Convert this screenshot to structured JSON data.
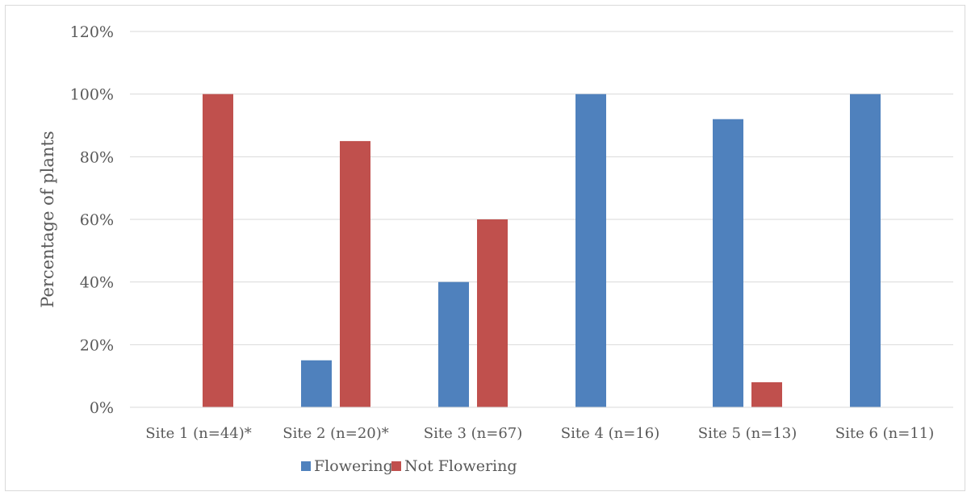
{
  "chart_data": {
    "type": "bar",
    "title": "",
    "xlabel": "",
    "ylabel": "Percentage of plants",
    "ylim": [
      0,
      1.2
    ],
    "yticks": [
      {
        "value": 0.0,
        "label": "0%"
      },
      {
        "value": 0.2,
        "label": "20%"
      },
      {
        "value": 0.4,
        "label": "40%"
      },
      {
        "value": 0.6,
        "label": "60%"
      },
      {
        "value": 0.8,
        "label": "80%"
      },
      {
        "value": 1.0,
        "label": "100%"
      },
      {
        "value": 1.2,
        "label": "120%"
      }
    ],
    "grid": true,
    "legend_position": "bottom",
    "categories": [
      "Site 1 (n=44)*",
      "Site 2 (n=20)*",
      "Site 3 (n=67)",
      "Site 4 (n=16)",
      "Site 5 (n=13)",
      "Site 6 (n=11)"
    ],
    "series": [
      {
        "name": "Flowering",
        "color": "#4f81bd",
        "values": [
          0,
          0.15,
          0.4,
          1.0,
          0.92,
          1.0
        ]
      },
      {
        "name": "Not Flowering",
        "color": "#c0504d",
        "values": [
          1.0,
          0.85,
          0.6,
          0,
          0.08,
          0
        ]
      }
    ]
  }
}
